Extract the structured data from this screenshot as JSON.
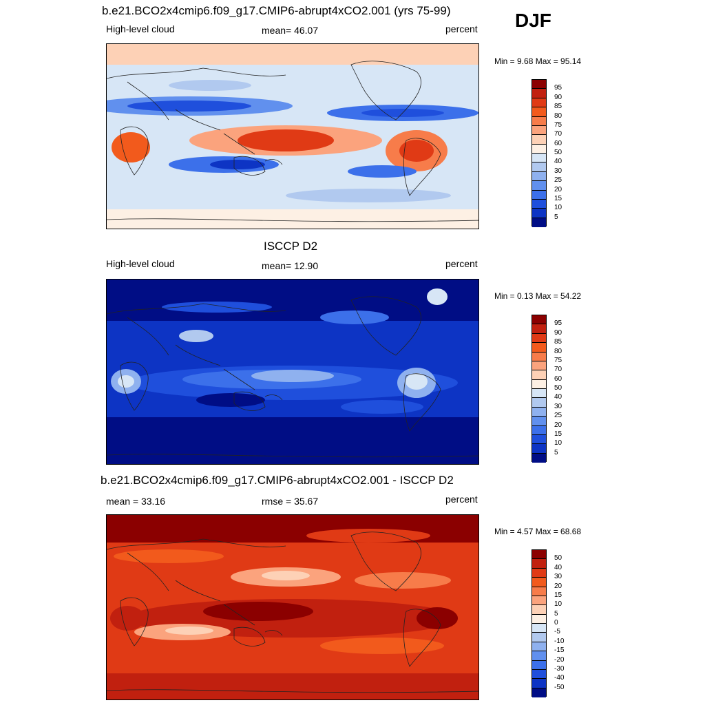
{
  "season": "DJF",
  "panels": [
    {
      "title": "b.e21.BCO2x4cmip6.f09_g17.CMIP6-abrupt4xCO2.001 (yrs 75-99)",
      "left_label": "High-level cloud",
      "center_label": "mean=  46.07",
      "right_label": "percent",
      "minmax": "Min =   9.68 Max =  95.14",
      "colorbar_labels": [
        "95",
        "90",
        "85",
        "80",
        "75",
        "70",
        "60",
        "50",
        "40",
        "30",
        "25",
        "20",
        "15",
        "10",
        "5"
      ],
      "colors": [
        "#8b0000",
        "#c1200f",
        "#e03a15",
        "#f25a1c",
        "#f77c4a",
        "#fba37d",
        "#fdd1b6",
        "#fdf0e4",
        "#d7e6f6",
        "#b1c9ef",
        "#8fb1ef",
        "#6190ee",
        "#3c70ea",
        "#1f4fdc",
        "#0d34c4",
        "#000d85"
      ]
    },
    {
      "title": "ISCCP D2",
      "left_label": "High-level cloud",
      "center_label": "mean=  12.90",
      "right_label": "percent",
      "minmax": "Min =   0.13 Max =  54.22",
      "colorbar_labels": [
        "95",
        "90",
        "85",
        "80",
        "75",
        "70",
        "60",
        "50",
        "40",
        "30",
        "25",
        "20",
        "15",
        "10",
        "5"
      ],
      "colors": [
        "#8b0000",
        "#c1200f",
        "#e03a15",
        "#f25a1c",
        "#f77c4a",
        "#fba37d",
        "#fdd1b6",
        "#fdf0e4",
        "#d7e6f6",
        "#b1c9ef",
        "#8fb1ef",
        "#6190ee",
        "#3c70ea",
        "#1f4fdc",
        "#0d34c4",
        "#000d85"
      ]
    },
    {
      "title": "b.e21.BCO2x4cmip6.f09_g17.CMIP6-abrupt4xCO2.001 - ISCCP D2",
      "left_label": "mean =  33.16",
      "center_label": "rmse =  35.67",
      "right_label": "percent",
      "minmax": "Min =   4.57 Max =  68.68",
      "colorbar_labels": [
        "50",
        "40",
        "30",
        "20",
        "15",
        "10",
        "5",
        "0",
        "-5",
        "-10",
        "-15",
        "-20",
        "-30",
        "-40",
        "-50"
      ],
      "colors": [
        "#8b0000",
        "#c1200f",
        "#e03a15",
        "#f25a1c",
        "#f77c4a",
        "#fba37d",
        "#fdd1b6",
        "#fdf0e4",
        "#d7e6f6",
        "#b1c9ef",
        "#8fb1ef",
        "#6190ee",
        "#3c70ea",
        "#1f4fdc",
        "#0d34c4",
        "#000d85"
      ]
    }
  ]
}
